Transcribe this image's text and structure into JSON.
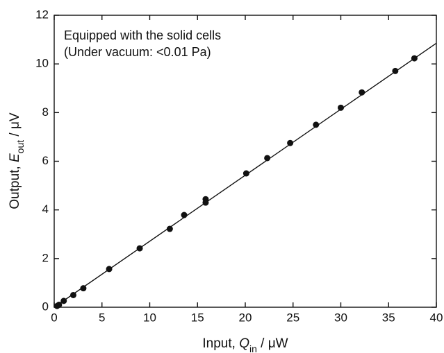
{
  "chart_data": {
    "type": "scatter",
    "annotations": [
      "Equipped with the solid cells",
      "(Under vacuum: <0.01 Pa)"
    ],
    "x_label": {
      "prefix": "Input, ",
      "symbol": "Q",
      "subscript": "in",
      "suffix": " / μW"
    },
    "y_label": {
      "prefix": "Output, ",
      "symbol": "E",
      "subscript": "out",
      "suffix": " / μV"
    },
    "xlim": [
      0,
      40
    ],
    "ylim": [
      0,
      12
    ],
    "xticks": [
      0,
      5,
      10,
      15,
      20,
      25,
      30,
      35,
      40
    ],
    "yticks": [
      0,
      2,
      4,
      6,
      8,
      10,
      12
    ],
    "series": [
      {
        "color": "#111111",
        "x": [
          0.3,
          0.5,
          1.0,
          2.0,
          3.05,
          5.75,
          8.95,
          12.1,
          13.6,
          15.85,
          15.85,
          20.1,
          22.3,
          24.7,
          27.4,
          30.0,
          32.2,
          35.7,
          37.7
        ],
        "values": [
          0.05,
          0.1,
          0.26,
          0.5,
          0.78,
          1.57,
          2.42,
          3.22,
          3.79,
          4.44,
          4.3,
          5.5,
          6.13,
          6.75,
          7.5,
          8.2,
          8.83,
          9.71,
          10.23
        ]
      }
    ],
    "fit_line": {
      "color": "#111111",
      "x": [
        0,
        40
      ],
      "values": [
        0,
        10.85
      ]
    }
  }
}
